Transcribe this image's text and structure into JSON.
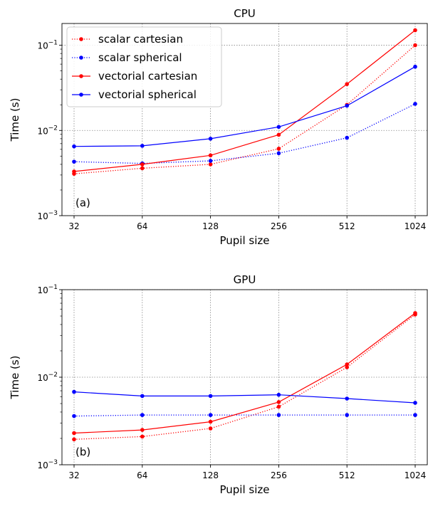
{
  "chart_data": [
    {
      "type": "line",
      "title": "CPU",
      "xlabel": "Pupil size",
      "ylabel": "Time (s)",
      "yscale": "log",
      "ylim": [
        0.001,
        0.18
      ],
      "x": [
        32,
        64,
        128,
        256,
        512,
        1024
      ],
      "x_tick_labels": [
        "32",
        "64",
        "128",
        "256",
        "512",
        "1024"
      ],
      "y_tick_labels": [
        {
          "value": 0.001,
          "base": "10",
          "exp": "−3"
        },
        {
          "value": 0.01,
          "base": "10",
          "exp": "−2"
        },
        {
          "value": 0.1,
          "base": "10",
          "exp": "−1"
        }
      ],
      "grid": true,
      "legend_position": "top-left",
      "annotation": "(a)",
      "series": [
        {
          "name": "scalar cartesian",
          "color": "#ff0000",
          "style": "dotted",
          "values": [
            0.0031,
            0.0036,
            0.004,
            0.0061,
            0.02,
            0.1
          ]
        },
        {
          "name": "scalar spherical",
          "color": "#0000ff",
          "style": "dotted",
          "values": [
            0.0043,
            0.0041,
            0.0044,
            0.0054,
            0.0082,
            0.0205
          ]
        },
        {
          "name": "vectorial cartesian",
          "color": "#ff0000",
          "style": "solid",
          "values": [
            0.0033,
            0.004,
            0.0051,
            0.0089,
            0.035,
            0.15
          ]
        },
        {
          "name": "vectorial spherical",
          "color": "#0000ff",
          "style": "solid",
          "values": [
            0.0065,
            0.0066,
            0.008,
            0.011,
            0.0195,
            0.056
          ]
        }
      ]
    },
    {
      "type": "line",
      "title": "GPU",
      "xlabel": "Pupil size",
      "ylabel": "Time (s)",
      "yscale": "log",
      "ylim": [
        0.001,
        0.1
      ],
      "x": [
        32,
        64,
        128,
        256,
        512,
        1024
      ],
      "x_tick_labels": [
        "32",
        "64",
        "128",
        "256",
        "512",
        "1024"
      ],
      "y_tick_labels": [
        {
          "value": 0.001,
          "base": "10",
          "exp": "−3"
        },
        {
          "value": 0.01,
          "base": "10",
          "exp": "−2"
        },
        {
          "value": 0.1,
          "base": "10",
          "exp": "−1"
        }
      ],
      "grid": true,
      "annotation": "(b)",
      "series": [
        {
          "name": "scalar cartesian",
          "color": "#ff0000",
          "style": "dotted",
          "values": [
            0.00195,
            0.0021,
            0.0026,
            0.0046,
            0.013,
            0.052
          ]
        },
        {
          "name": "scalar spherical",
          "color": "#0000ff",
          "style": "dotted",
          "values": [
            0.0036,
            0.0037,
            0.0037,
            0.0037,
            0.0037,
            0.0037
          ]
        },
        {
          "name": "vectorial cartesian",
          "color": "#ff0000",
          "style": "solid",
          "values": [
            0.0023,
            0.0025,
            0.0031,
            0.0052,
            0.014,
            0.054
          ]
        },
        {
          "name": "vectorial spherical",
          "color": "#0000ff",
          "style": "solid",
          "values": [
            0.0068,
            0.0061,
            0.0061,
            0.0063,
            0.0057,
            0.0051
          ]
        }
      ]
    }
  ]
}
